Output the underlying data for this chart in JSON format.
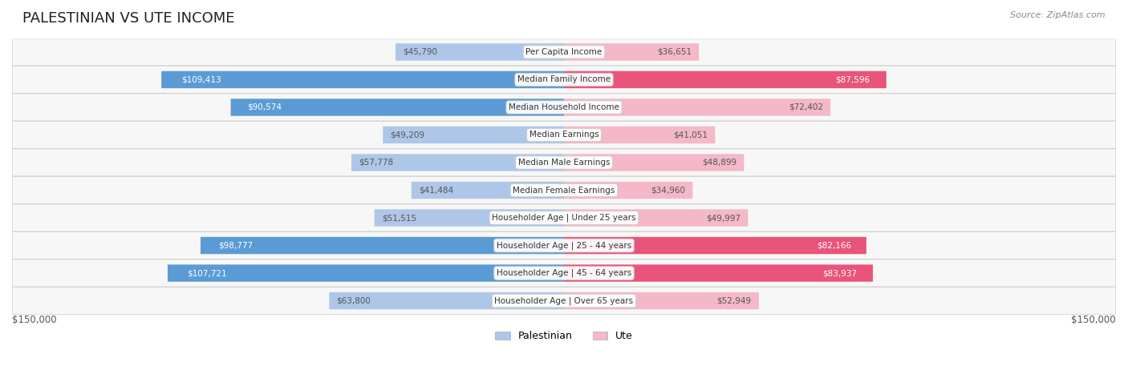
{
  "title": "PALESTINIAN VS UTE INCOME",
  "source": "Source: ZipAtlas.com",
  "categories": [
    "Per Capita Income",
    "Median Family Income",
    "Median Household Income",
    "Median Earnings",
    "Median Male Earnings",
    "Median Female Earnings",
    "Householder Age | Under 25 years",
    "Householder Age | 25 - 44 years",
    "Householder Age | 45 - 64 years",
    "Householder Age | Over 65 years"
  ],
  "palestinian_values": [
    45790,
    109413,
    90574,
    49209,
    57778,
    41484,
    51515,
    98777,
    107721,
    63800
  ],
  "ute_values": [
    36651,
    87596,
    72402,
    41051,
    48899,
    34960,
    49997,
    82166,
    83937,
    52949
  ],
  "palestinian_labels": [
    "$45,790",
    "$109,413",
    "$90,574",
    "$49,209",
    "$57,778",
    "$41,484",
    "$51,515",
    "$98,777",
    "$107,721",
    "$63,800"
  ],
  "ute_labels": [
    "$36,651",
    "$87,596",
    "$72,402",
    "$41,051",
    "$48,899",
    "$34,960",
    "$49,997",
    "$82,166",
    "$83,937",
    "$52,949"
  ],
  "max_value": 150000,
  "palestinian_color_low": "#aec6e8",
  "palestinian_color_high": "#5b9bd5",
  "ute_color_low": "#f4b8c8",
  "ute_color_high": "#e9547a",
  "threshold": 75000,
  "bg_color": "#f0f0f0",
  "row_bg": "#f7f7f7",
  "row_border": "#d0d0d0",
  "label_color_dark": "#555555",
  "label_color_white": "#ffffff",
  "x_ticks": [
    "$150,000",
    "$150,000"
  ],
  "legend_palestinian": "Palestinian",
  "legend_ute": "Ute"
}
